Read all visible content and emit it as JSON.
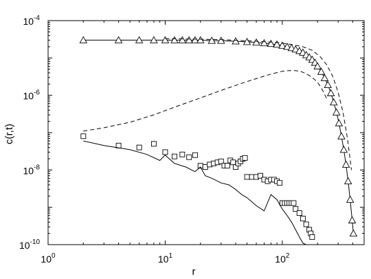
{
  "chart_data": {
    "type": "scatter",
    "title": "",
    "xlabel": "r",
    "ylabel": "c(r,t)",
    "xscale": "log",
    "yscale": "log",
    "xlim": [
      1,
      500
    ],
    "ylim": [
      1e-10,
      0.0001
    ],
    "grid": false,
    "x_ticks": [
      {
        "value": 1,
        "base": "10",
        "exp": "0"
      },
      {
        "value": 10,
        "base": "10",
        "exp": "1"
      },
      {
        "value": 100,
        "base": "10",
        "exp": "2"
      }
    ],
    "y_ticks": [
      {
        "value": 1e-10,
        "base": "10",
        "exp": "-10"
      },
      {
        "value": 1e-08,
        "base": "10",
        "exp": "-8"
      },
      {
        "value": 1e-06,
        "base": "10",
        "exp": "-6"
      },
      {
        "value": 0.0001,
        "base": "10",
        "exp": "-4"
      }
    ],
    "series": [
      {
        "style": "solid-line-triangles",
        "marker": "triangle",
        "x": [
          2,
          4,
          6,
          8,
          10,
          12,
          14,
          16,
          18,
          20,
          25,
          30,
          40,
          50,
          60,
          70,
          80,
          90,
          100,
          110,
          120,
          130,
          140,
          150,
          160,
          170,
          180,
          190,
          200,
          215,
          230,
          245,
          260,
          275,
          290,
          305,
          320,
          335,
          350,
          365,
          380,
          395,
          405
        ],
        "y": [
          3e-05,
          3e-05,
          3e-05,
          3e-05,
          3e-05,
          3e-05,
          3e-05,
          3e-05,
          3e-05,
          3e-05,
          2.9e-05,
          2.9e-05,
          2.8e-05,
          2.7e-05,
          2.6e-05,
          2.5e-05,
          2.4e-05,
          2.3e-05,
          2.15e-05,
          2e-05,
          1.85e-05,
          1.7e-05,
          1.55e-05,
          1.4e-05,
          1.2e-05,
          1.05e-05,
          9e-06,
          7.5e-06,
          6e-06,
          4.3e-06,
          2.9e-06,
          1.9e-06,
          1.15e-06,
          6.5e-07,
          3.5e-07,
          1.8e-07,
          8e-08,
          3.5e-08,
          1.4e-08,
          5e-09,
          1.6e-09,
          4.5e-10,
          2e-10
        ]
      },
      {
        "style": "dashed-line",
        "marker": "none",
        "x": [
          10,
          30,
          60,
          90,
          120,
          150,
          180,
          210,
          240,
          270,
          300,
          330,
          360,
          390
        ],
        "y": [
          3.3e-05,
          3.1e-05,
          2.8e-05,
          2.6e-05,
          2.3e-05,
          2e-05,
          1.6e-05,
          1.1e-05,
          6.5e-06,
          3.2e-06,
          1.2e-06,
          3.5e-07,
          7e-08,
          1e-08
        ]
      },
      {
        "style": "dashed-line",
        "marker": "none",
        "x": [
          2,
          3,
          5,
          8,
          12,
          20,
          30,
          45,
          60,
          80,
          100,
          115,
          130,
          145,
          160,
          175,
          190,
          205,
          220,
          240
        ],
        "y": [
          1.1e-07,
          1.35e-07,
          1.9e-07,
          3e-07,
          4.8e-07,
          8.5e-07,
          1.35e-06,
          2.1e-06,
          2.8e-06,
          3.7e-06,
          4.4e-06,
          4.6e-06,
          4.6e-06,
          4.3e-06,
          3.8e-06,
          3.2e-06,
          2.6e-06,
          2e-06,
          1.4e-06,
          8e-07
        ]
      },
      {
        "style": "squares",
        "marker": "square",
        "x": [
          2,
          4,
          6,
          8,
          10,
          12,
          14,
          16,
          18,
          20,
          22,
          24,
          26,
          28,
          30,
          32,
          34,
          36,
          38,
          40,
          42,
          44,
          46,
          48,
          50,
          55,
          60,
          65,
          70,
          75,
          80,
          85,
          90,
          95,
          100,
          105,
          110,
          115,
          120,
          125,
          130,
          140,
          150,
          160,
          170,
          175,
          180
        ],
        "y": [
          8e-08,
          4.5e-08,
          4e-08,
          5e-08,
          3e-08,
          2.3e-08,
          2.6e-08,
          2.2e-08,
          2.5e-08,
          1.3e-08,
          1.2e-08,
          1.4e-08,
          1.5e-08,
          1.6e-08,
          1.7e-08,
          1.3e-08,
          1.3e-08,
          1.8e-08,
          1.6e-08,
          1.2e-08,
          1.5e-08,
          1.7e-08,
          2e-08,
          2.1e-08,
          6.5e-09,
          6.5e-09,
          6.5e-09,
          7e-09,
          5.5e-09,
          5e-09,
          5.5e-09,
          5.5e-09,
          5e-09,
          4.5e-09,
          1.3e-09,
          1.3e-09,
          1.3e-09,
          1.3e-09,
          1.3e-09,
          1.3e-09,
          9e-10,
          7e-10,
          5e-10,
          3.5e-10,
          2.5e-10,
          2e-10,
          1.6e-10
        ]
      },
      {
        "style": "solid-line",
        "marker": "none",
        "x": [
          2,
          3,
          5,
          7,
          9,
          10,
          12,
          15,
          18,
          20,
          22,
          25,
          30,
          35,
          40,
          45,
          50,
          55,
          60,
          70,
          80,
          90,
          100,
          110,
          120,
          130,
          140,
          150,
          160
        ],
        "y": [
          6e-08,
          4.5e-08,
          3.5e-08,
          2.6e-08,
          1.8e-08,
          2.5e-08,
          1.5e-08,
          1.2e-08,
          9e-09,
          1.2e-08,
          7e-09,
          6e-09,
          4.5e-09,
          4e-09,
          3e-09,
          2.2e-09,
          1.8e-09,
          1.4e-09,
          1.1e-09,
          8e-10,
          2.2e-09,
          1.6e-09,
          9e-10,
          6e-10,
          4e-10,
          2.5e-10,
          1.6e-10,
          1.1e-10,
          1e-10
        ]
      }
    ]
  }
}
